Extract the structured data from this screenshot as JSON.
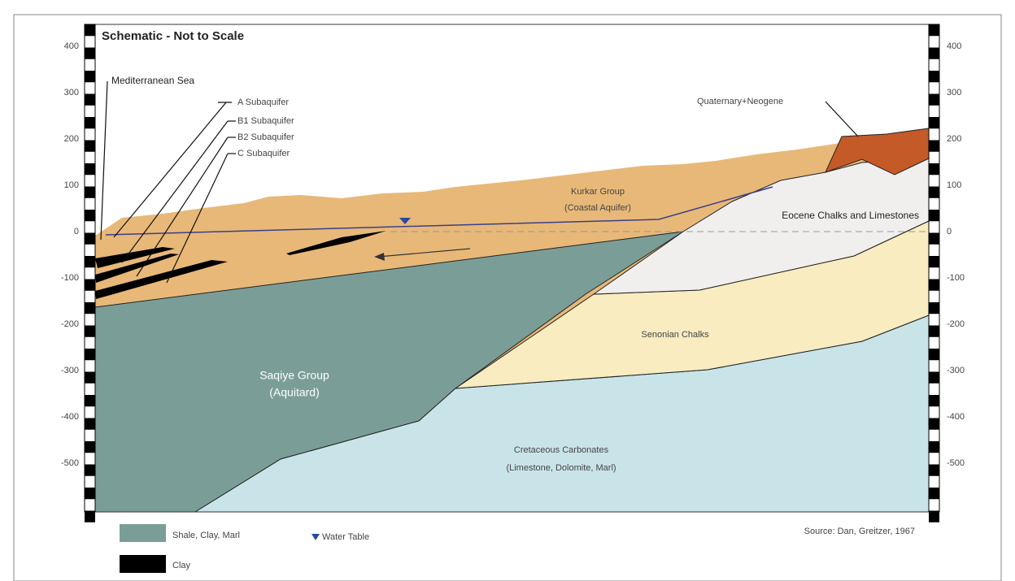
{
  "title": "Schematic - Not to Scale",
  "scale": {
    "left": [
      400,
      300,
      200,
      100,
      0,
      -100,
      -200,
      -300,
      -400,
      -500
    ],
    "right": [
      400,
      300,
      200,
      100,
      0,
      -100,
      -200,
      -300,
      -400,
      -500
    ]
  },
  "labels": {
    "sea": "Mediterranean Sea",
    "sub_a": "A Subaquifer",
    "sub_b1": "B1 Subaquifer",
    "sub_b2": "B2 Subaquifer",
    "sub_c": "C Subaquifer",
    "quaternary": "Quaternary+Neogene",
    "kurkar_1": "Kurkar Group",
    "kurkar_2": "(Coastal Aquifer)",
    "eocene": "Eocene Chalks and Limestones",
    "senonian": "Senonian Chalks",
    "saqiye_1": "Saqiye Group",
    "saqiye_2": "(Aquitard)",
    "cretaceous_1": "Cretaceous Carbonates",
    "cretaceous_2": "(Limestone, Dolomite, Marl)"
  },
  "legend": {
    "shale": "Shale, Clay, Marl",
    "water_table": "Water Table",
    "clay": "Clay"
  },
  "source": "Source: Dan, Greitzer, 1967"
}
